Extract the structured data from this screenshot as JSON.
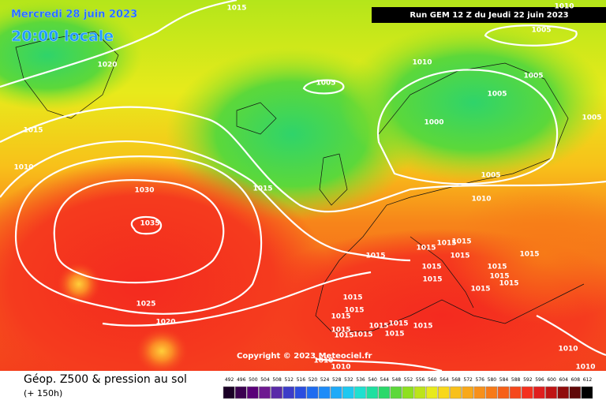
{
  "header": {
    "date": "Mercredi 28 juin 2023",
    "time": "20:00 locale",
    "run": "Run GEM 12 Z du Jeudi 22 juin 2023"
  },
  "copyright": "Copyright © 2023 Meteociel.fr",
  "footer": {
    "title": "Géop. Z500 & pression au sol",
    "subtitle": "(+ 150h)"
  },
  "scale": [
    492,
    496,
    500,
    504,
    508,
    512,
    516,
    520,
    524,
    528,
    532,
    536,
    540,
    544,
    548,
    552,
    556,
    560,
    564,
    568,
    572,
    576,
    580,
    584,
    588,
    592,
    596,
    600,
    604,
    608,
    612
  ],
  "isobar_labels": [
    "1015",
    "1010",
    "1005",
    "1020",
    "1010",
    "1005",
    "1005",
    "1005",
    "1000",
    "1005",
    "1015",
    "1010",
    "1030",
    "1015",
    "1005",
    "1010",
    "1035",
    "1015",
    "1015",
    "1015",
    "1015",
    "1015",
    "1015",
    "1015",
    "1015",
    "1015",
    "1015",
    "1015",
    "1015",
    "1025",
    "1015",
    "1015",
    "1015",
    "1020",
    "1015",
    "1015",
    "1015",
    "1015",
    "1015",
    "1015",
    "1015",
    "1010",
    "1010",
    "1010",
    "1010"
  ]
}
